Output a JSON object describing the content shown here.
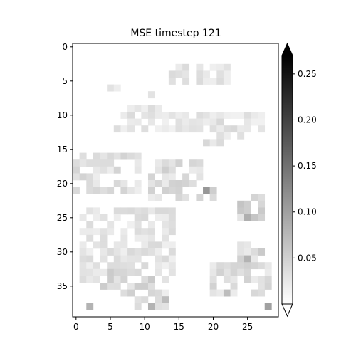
{
  "chart_data": {
    "type": "heatmap",
    "title": "MSE timestep 121",
    "xlabel": "",
    "ylabel": "",
    "rows": 40,
    "cols": 30,
    "x_ticks": [
      0,
      5,
      10,
      15,
      20,
      25
    ],
    "y_ticks": [
      0,
      5,
      10,
      15,
      20,
      25,
      30,
      35
    ],
    "colormap": "Greys",
    "colorbar": {
      "min": 0.0,
      "max": 0.27,
      "ticks": [
        0.05,
        0.1,
        0.15,
        0.2,
        0.25
      ],
      "tick_labels": [
        "0.05",
        "0.10",
        "0.15",
        "0.20",
        "0.25"
      ],
      "extend": "both"
    },
    "grid": false,
    "legend": "none",
    "background_value": 0.0,
    "regions": [
      {
        "r0": 3,
        "r1": 6,
        "c0": 14,
        "c1": 23,
        "value": 0.04
      },
      {
        "r0": 6,
        "r1": 7,
        "c0": 5,
        "c1": 8,
        "value": 0.03
      },
      {
        "r0": 7,
        "r1": 8,
        "c0": 11,
        "c1": 12,
        "value": 0.03
      },
      {
        "r0": 9,
        "r1": 11,
        "c0": 7,
        "c1": 13,
        "value": 0.04
      },
      {
        "r0": 10,
        "r1": 13,
        "c0": 6,
        "c1": 28,
        "value": 0.035
      },
      {
        "r0": 11,
        "r1": 14,
        "c0": 21,
        "c1": 26,
        "value": 0.045
      },
      {
        "r0": 14,
        "r1": 15,
        "c0": 19,
        "c1": 22,
        "value": 0.04
      },
      {
        "r0": 16,
        "r1": 22,
        "c0": 0,
        "c1": 10,
        "value": 0.045
      },
      {
        "r0": 17,
        "r1": 23,
        "c0": 11,
        "c1": 19,
        "value": 0.05
      },
      {
        "r0": 21,
        "r1": 23,
        "c0": 19,
        "c1": 21,
        "value": 0.06
      },
      {
        "r0": 24,
        "r1": 35,
        "c0": 1,
        "c1": 15,
        "value": 0.04
      },
      {
        "r0": 22,
        "r1": 26,
        "c0": 24,
        "c1": 28,
        "value": 0.06
      },
      {
        "r0": 29,
        "r1": 34,
        "c0": 24,
        "c1": 28,
        "value": 0.055
      },
      {
        "r0": 32,
        "r1": 37,
        "c0": 20,
        "c1": 29,
        "value": 0.05
      },
      {
        "r0": 33,
        "r1": 37,
        "c0": 4,
        "c1": 12,
        "value": 0.055
      },
      {
        "r0": 36,
        "r1": 39,
        "c0": 9,
        "c1": 14,
        "value": 0.045
      }
    ],
    "cells": [
      {
        "r": 21,
        "c": 19,
        "value": 0.11
      },
      {
        "r": 25,
        "c": 25,
        "value": 0.085
      },
      {
        "r": 31,
        "c": 25,
        "value": 0.08
      },
      {
        "r": 38,
        "c": 28,
        "value": 0.1
      },
      {
        "r": 38,
        "c": 2,
        "value": 0.08
      },
      {
        "r": 38,
        "c": 11,
        "value": 0.08
      },
      {
        "r": 36,
        "c": 22,
        "value": 0.07
      },
      {
        "r": 37,
        "c": 13,
        "value": 0.07
      }
    ]
  }
}
